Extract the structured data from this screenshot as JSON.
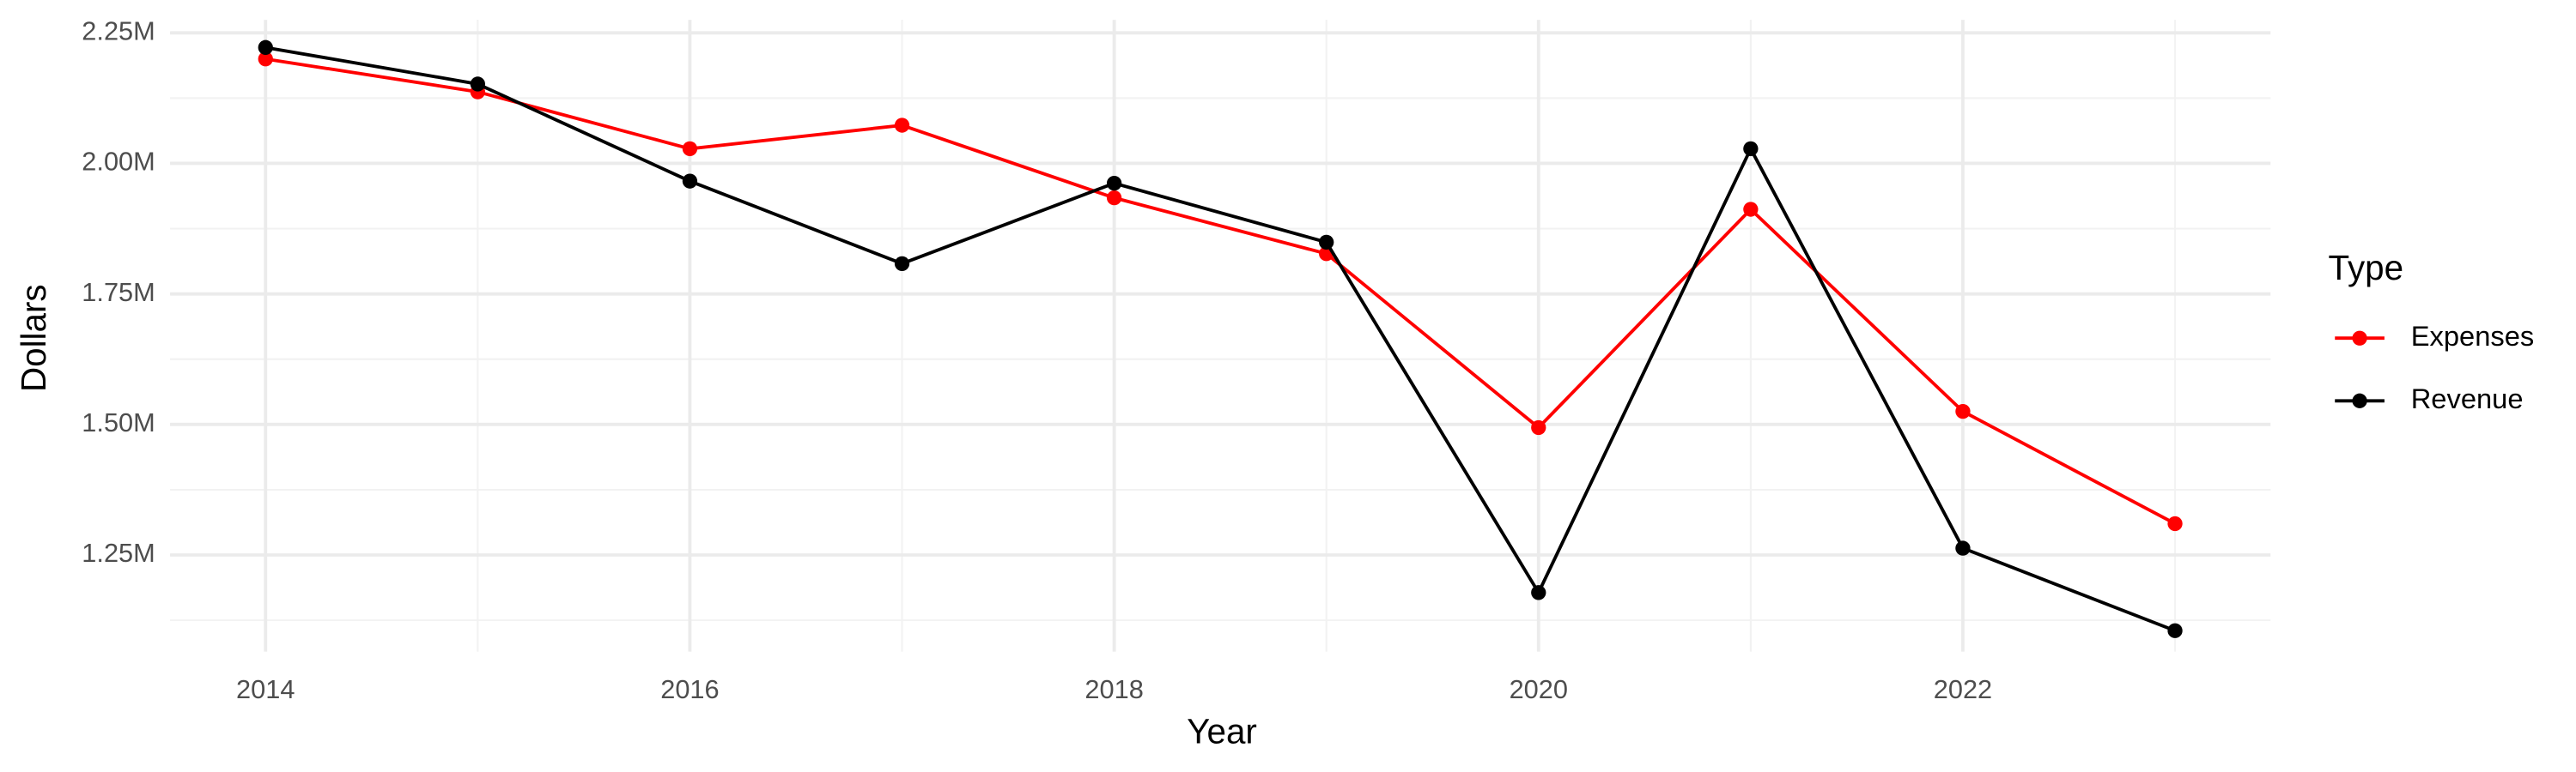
{
  "chart_data": {
    "type": "line",
    "x_label": "Year",
    "y_label": "Dollars",
    "legend_title": "Type",
    "x": [
      2014,
      2015,
      2016,
      2017,
      2018,
      2019,
      2020,
      2021,
      2022,
      2023
    ],
    "series": [
      {
        "name": "Expenses",
        "color": "#ff0000",
        "values": [
          2200000,
          2137000,
          2028000,
          2073000,
          1934000,
          1827000,
          1494000,
          1912000,
          1525000,
          1310000
        ]
      },
      {
        "name": "Revenue",
        "color": "#000000",
        "values": [
          2222000,
          2152000,
          1966000,
          1808000,
          1962000,
          1849000,
          1178000,
          2028000,
          1263000,
          1105000
        ]
      }
    ],
    "xlim": [
      2013.55,
      2023.45
    ],
    "xticks": [
      2014,
      2016,
      2018,
      2020,
      2022
    ],
    "ylim": [
      1065000,
      2275000
    ],
    "yticks": [
      {
        "value": 1250000,
        "label": "1.25M"
      },
      {
        "value": 1500000,
        "label": "1.50M"
      },
      {
        "value": 1750000,
        "label": "1.75M"
      },
      {
        "value": 2000000,
        "label": "2.00M"
      },
      {
        "value": 2250000,
        "label": "2.25M"
      }
    ],
    "grid": true,
    "legend": "right"
  }
}
